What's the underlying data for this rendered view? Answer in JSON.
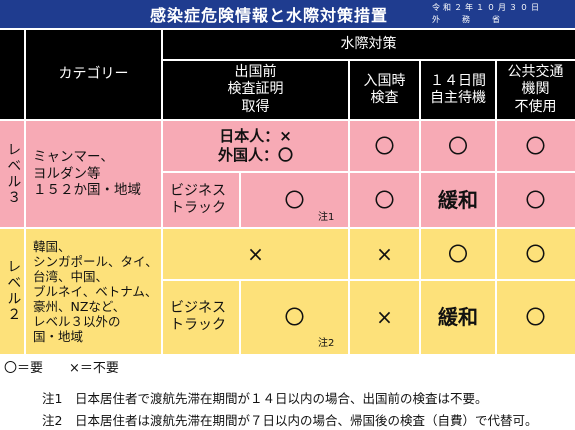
{
  "header": {
    "title": "感染症危険情報と水際対策措置",
    "date_line1": "令和２年１０月３０日",
    "date_line2": "外務省"
  },
  "table": {
    "col_category": "カテゴリー",
    "col_group": "水際対策",
    "cols": [
      "出国前\n検査証明\n取得",
      "入国時\n検査",
      "１４日間\n自主待機",
      "公共交通\n機関\n不使用"
    ],
    "level3": {
      "label": "レベル３",
      "countries": "ミャンマー、\nヨルダン等\n１５２か国・地域",
      "row1_pretest": "日本人：×\n外国人：〇",
      "row1_values": [
        "〇",
        "〇",
        "〇"
      ],
      "row2_label": "ビジネス\nトラック",
      "row2_pretest": "〇",
      "row2_note": "注1",
      "row2_values": [
        "〇",
        "緩和",
        "〇"
      ]
    },
    "level2": {
      "label": "レベル２",
      "countries": "韓国、\nシンガポール、タイ、\n台湾、中国、\nブルネイ、ベトナム、\n豪州、NZなど、\nレベル３以外の\n国・地域",
      "row1_pretest": "×",
      "row1_values": [
        "×",
        "〇",
        "〇"
      ],
      "row2_label": "ビジネス\nトラック",
      "row2_pretest": "〇",
      "row2_note": "注2",
      "row2_values": [
        "×",
        "緩和",
        "〇"
      ]
    }
  },
  "legend": "〇＝要　　×＝不要",
  "notes": [
    "注1　日本居住者で渡航先滞在期間が１４日以内の場合、出国前の検査は不要。",
    "注2　日本居住者は渡航先滞在期間が７日以内の場合、帰国後の検査（自費）で代替可。"
  ],
  "colors": {
    "header_bg": "#000000",
    "level3_bg": "#f7aab5",
    "level2_bg": "#fde17a",
    "title_bg": "#1f3c8f"
  }
}
